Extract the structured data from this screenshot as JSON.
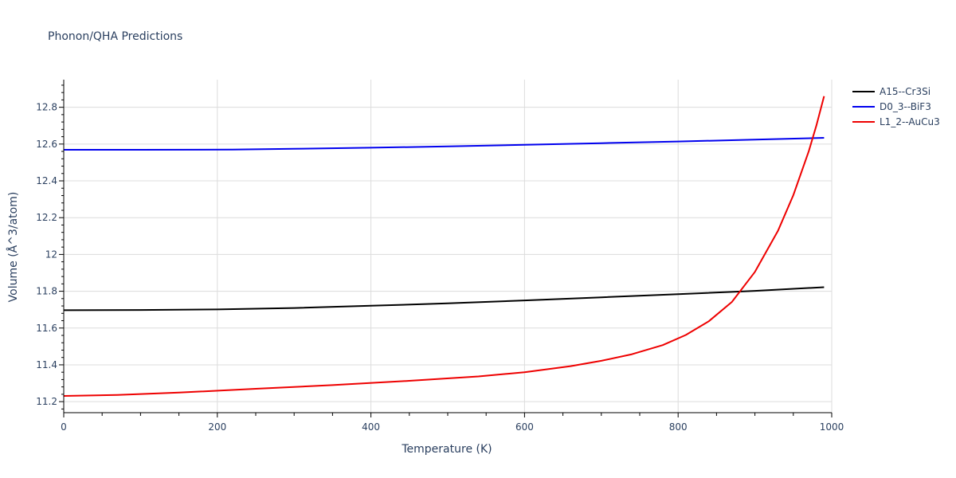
{
  "chart_data": {
    "type": "line",
    "title": "Phonon/QHA Predictions",
    "xlabel": "Temperature (K)",
    "ylabel": "Volume (Å^3/atom)",
    "xlim": [
      0,
      1000
    ],
    "ylim": [
      11.14,
      12.95
    ],
    "xticks": [
      0,
      200,
      400,
      600,
      800,
      1000
    ],
    "yticks": [
      11.2,
      11.4,
      11.6,
      11.8,
      12,
      12.2,
      12.4,
      12.6,
      12.8
    ],
    "xtick_labels": [
      "0",
      "200",
      "400",
      "600",
      "800",
      "1000"
    ],
    "ytick_labels": [
      "11.2",
      "11.4",
      "11.6",
      "11.8",
      "12",
      "12.2",
      "12.4",
      "12.6",
      "12.8"
    ],
    "grid": true,
    "legend_position": "top-right",
    "series": [
      {
        "name": "A15--Cr3Si",
        "color": "#000000",
        "x": [
          0,
          100,
          200,
          300,
          400,
          500,
          600,
          700,
          800,
          900,
          990
        ],
        "y": [
          11.697,
          11.698,
          11.701,
          11.709,
          11.721,
          11.734,
          11.75,
          11.767,
          11.784,
          11.802,
          11.822
        ]
      },
      {
        "name": "D0_3--BiF3",
        "color": "#0000ee",
        "x": [
          0,
          100,
          220,
          300,
          400,
          500,
          600,
          700,
          800,
          900,
          990
        ],
        "y": [
          12.569,
          12.569,
          12.57,
          12.574,
          12.58,
          12.587,
          12.596,
          12.605,
          12.614,
          12.624,
          12.634
        ]
      },
      {
        "name": "L1_2--AuCu3",
        "color": "#ee0000",
        "x": [
          0,
          70,
          150,
          250,
          350,
          450,
          540,
          600,
          660,
          700,
          740,
          780,
          810,
          840,
          870,
          900,
          930,
          950,
          970,
          980,
          990
        ],
        "y": [
          11.231,
          11.236,
          11.249,
          11.27,
          11.29,
          11.313,
          11.337,
          11.36,
          11.393,
          11.422,
          11.458,
          11.507,
          11.562,
          11.637,
          11.742,
          11.905,
          12.128,
          12.322,
          12.56,
          12.7,
          12.86
        ]
      }
    ]
  }
}
